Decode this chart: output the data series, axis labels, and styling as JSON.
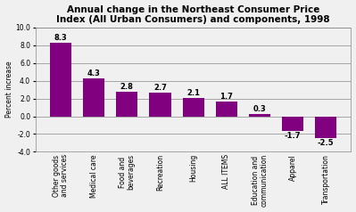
{
  "title": "Annual change in the Northeast Consumer Price\nIndex (All Urban Consumers) and components, 1998",
  "categories": [
    "Other goods\nand services",
    "Medical care",
    "Food and\nbeverages",
    "Recreation",
    "Housing",
    "ALL ITEMS",
    "Education and\ncommunication",
    "Apparel",
    "Transportation"
  ],
  "values": [
    8.3,
    4.3,
    2.8,
    2.7,
    2.1,
    1.7,
    0.3,
    -1.7,
    -2.5
  ],
  "bar_color": "#800080",
  "ylabel": "Percent increase",
  "ylim": [
    -4.0,
    10.0
  ],
  "yticks": [
    -4.0,
    -2.0,
    0.0,
    2.0,
    4.0,
    6.0,
    8.0,
    10.0
  ],
  "background_color": "#f0f0f0",
  "plot_bg_color": "#f0f0f0",
  "grid_color": "#888888",
  "title_fontsize": 7.5,
  "label_fontsize": 5.5,
  "value_fontsize": 6.0
}
